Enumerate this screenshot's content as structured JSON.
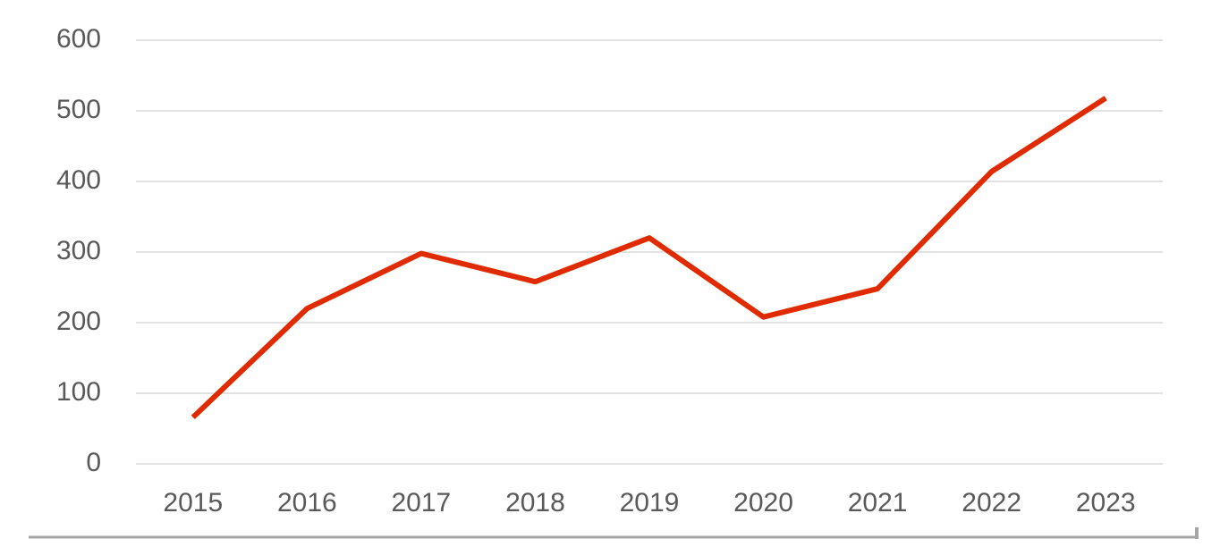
{
  "chart_data": {
    "type": "line",
    "categories": [
      "2015",
      "2016",
      "2017",
      "2018",
      "2019",
      "2020",
      "2021",
      "2022",
      "2023"
    ],
    "series": [
      {
        "color": "#e02b00",
        "values": [
          66,
          220,
          298,
          258,
          320,
          208,
          248,
          414,
          518
        ]
      }
    ],
    "ylim": [
      0,
      600
    ],
    "yticks": [
      0,
      100,
      200,
      300,
      400,
      500,
      600
    ],
    "grid": true
  }
}
